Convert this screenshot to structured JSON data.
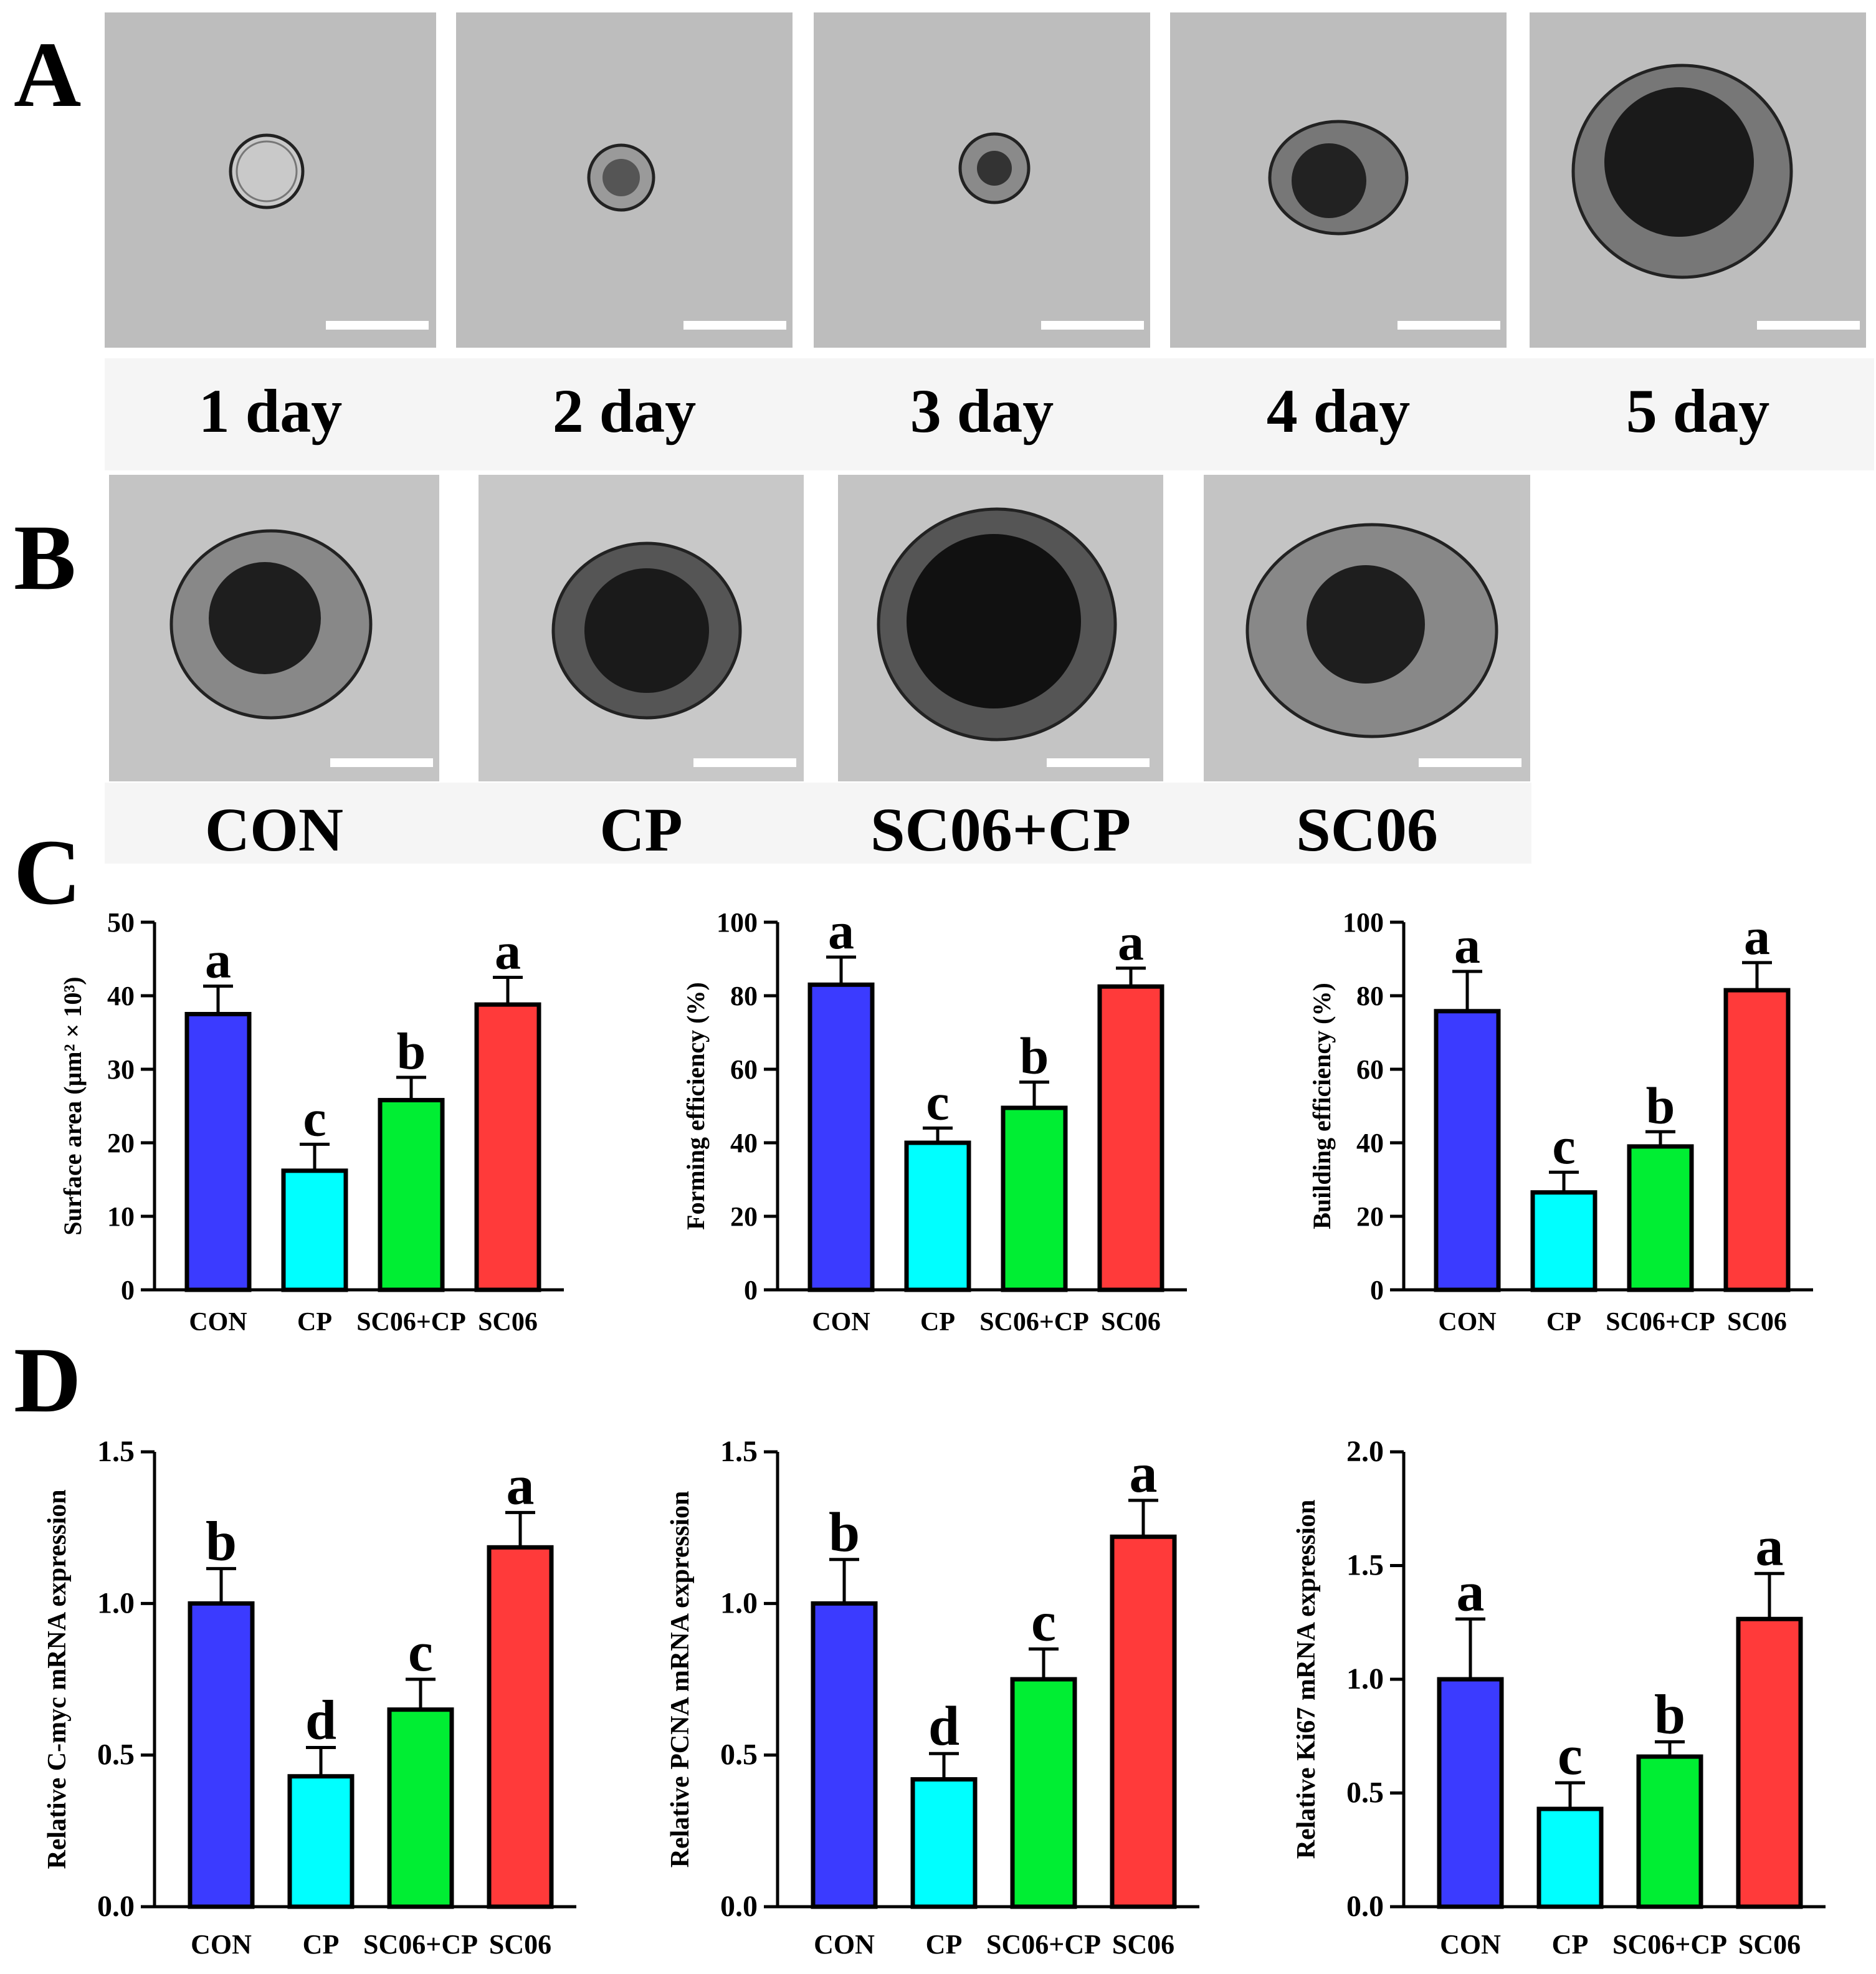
{
  "panels": {
    "A": "A",
    "B": "B",
    "C": "C",
    "D": "D"
  },
  "panel_a": {
    "labels": [
      "1 day",
      "2 day",
      "3 day",
      "4 day",
      "5 day"
    ]
  },
  "panel_b": {
    "labels": [
      "CON",
      "CP",
      "SC06+CP",
      "SC06"
    ]
  },
  "colors": {
    "CON": "#3b3bff",
    "CP": "#00ffff",
    "SC06+CP": "#00ee33",
    "SC06": "#ff3a3a"
  },
  "chart_data": [
    {
      "id": "c1",
      "type": "bar",
      "categories": [
        "CON",
        "CP",
        "SC06+CP",
        "SC06"
      ],
      "values": [
        37.5,
        16.2,
        25.8,
        38.8
      ],
      "errors": [
        3.8,
        3.6,
        3.1,
        3.7
      ],
      "letters": [
        "a",
        "c",
        "b",
        "a"
      ],
      "ylabel": "Surface area (μm² × 10³)",
      "ylim": [
        0,
        50
      ],
      "yticks": [
        0,
        10,
        20,
        30,
        40,
        50
      ]
    },
    {
      "id": "c2",
      "type": "bar",
      "categories": [
        "CON",
        "CP",
        "SC06+CP",
        "SC06"
      ],
      "values": [
        83,
        40,
        49.5,
        82.5
      ],
      "errors": [
        7.5,
        4,
        7,
        5
      ],
      "letters": [
        "a",
        "c",
        "b",
        "a"
      ],
      "ylabel": "Forming efficiency (%)",
      "ylim": [
        0,
        100
      ],
      "yticks": [
        0,
        20,
        40,
        60,
        80,
        100
      ]
    },
    {
      "id": "c3",
      "type": "bar",
      "categories": [
        "CON",
        "CP",
        "SC06+CP",
        "SC06"
      ],
      "values": [
        75.8,
        26.5,
        39,
        81.5
      ],
      "errors": [
        10.8,
        5.5,
        4,
        7.5
      ],
      "letters": [
        "a",
        "c",
        "b",
        "a"
      ],
      "ylabel": "Building efficiency (%)",
      "ylim": [
        0,
        100
      ],
      "yticks": [
        0,
        20,
        40,
        60,
        80,
        100
      ]
    },
    {
      "id": "d1",
      "type": "bar",
      "categories": [
        "CON",
        "CP",
        "SC06+CP",
        "SC06"
      ],
      "values": [
        1.0,
        0.43,
        0.65,
        1.185
      ],
      "errors": [
        0.115,
        0.095,
        0.1,
        0.115
      ],
      "letters": [
        "b",
        "d",
        "c",
        "a"
      ],
      "ylabel": "Relative C-myc mRNA expression",
      "ylim": [
        0,
        1.5
      ],
      "yticks": [
        "0.0",
        "0.5",
        "1.0",
        "1.5"
      ]
    },
    {
      "id": "d2",
      "type": "bar",
      "categories": [
        "CON",
        "CP",
        "SC06+CP",
        "SC06"
      ],
      "values": [
        1.0,
        0.42,
        0.75,
        1.22
      ],
      "errors": [
        0.145,
        0.085,
        0.1,
        0.12
      ],
      "letters": [
        "b",
        "d",
        "c",
        "a"
      ],
      "ylabel": "Relative PCNA mRNA expression",
      "ylim": [
        0,
        1.5
      ],
      "yticks": [
        "0.0",
        "0.5",
        "1.0",
        "1.5"
      ]
    },
    {
      "id": "d3",
      "type": "bar",
      "categories": [
        "CON",
        "CP",
        "SC06+CP",
        "SC06"
      ],
      "values": [
        1.0,
        0.43,
        0.66,
        1.265
      ],
      "errors": [
        0.265,
        0.115,
        0.065,
        0.2
      ],
      "letters": [
        "a",
        "c",
        "b",
        "a"
      ],
      "ylabel": "Relative Ki67 mRNA expression",
      "ylim": [
        0,
        2.0
      ],
      "yticks": [
        "0.0",
        "0.5",
        "1.0",
        "1.5",
        "2.0"
      ]
    }
  ]
}
